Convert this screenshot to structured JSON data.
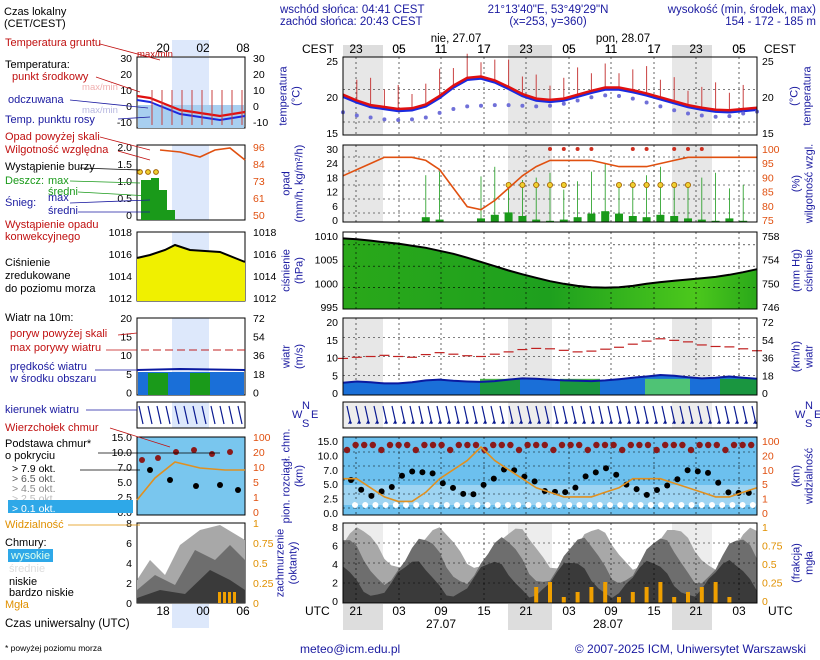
{
  "header": {
    "sunrise": "wschód słońca: 04:41 CEST",
    "sunset": "zachód słońca: 20:43 CEST",
    "coords": "21°13'40\"E, 53°49'29\"N",
    "grid": "(x=253, y=360)",
    "elev_title": "wysokość (min, środek, max)",
    "elev_values": "154 - 172 - 185 m"
  },
  "timeline": {
    "cest_label": "CEST",
    "utc_label": "UTC",
    "day1": "nie, 27.07",
    "day2": "pon, 28.07",
    "date1": "27.07",
    "date2": "28.07",
    "cest_hours": [
      "23",
      "05",
      "11",
      "17",
      "23",
      "05",
      "11",
      "17",
      "23",
      "05"
    ],
    "utc_hours": [
      "21",
      "03",
      "09",
      "15",
      "21",
      "03",
      "09",
      "15",
      "21",
      "03"
    ]
  },
  "legend": {
    "time_title": "Czas lokalny\n(CET/CEST)",
    "time_hours": [
      "20",
      "02",
      "08"
    ],
    "utc_hours": [
      "18",
      "00",
      "06"
    ],
    "utc_caption": "Czas uniwersalny (UTC)",
    "soil": "Temperatura gruntu",
    "soil_sub": "max/min",
    "temp_title": "Temperatura:",
    "temp_mid": "punkt środkowy",
    "temp_maxmin": "max/min",
    "temp_perceived": "odczuwana",
    "temp_perceived_sub": "max/min",
    "dewpoint": "Temp. punktu rosy",
    "precip_above": "Opad powyżej skali",
    "rh": "Wilgotność względna",
    "storm": "Wystąpienie burzy",
    "rain": "Deszcz:",
    "rain_max": "max",
    "rain_mid": "średni",
    "snow": "Śnieg:",
    "snow_max": "max",
    "snow_mid": "średni",
    "conv": "Wystąpienie opadu\nkonwekcyjnego",
    "pressure": "Ciśnienie\nzredukowane\ndo poziomu morza",
    "wind": "Wiatr na 10m:",
    "gust_above": "poryw powyżej skali",
    "gust_max": "max porywy wiatru",
    "wind_speed": "prędkość wiatru\nw środku obszaru",
    "wind_dir": "kierunek wiatru",
    "cloud_top": "Wierzchołek chmur",
    "cloud_base": "Podstawa chmur*\no pokryciu",
    "okt": [
      "> 7.9 okt.",
      "> 6.5 okt.",
      "> 4.5 okt.",
      "> 2.5 okt.",
      "> 0.1 okt."
    ],
    "visibility": "Widzialność",
    "clouds": "Chmury:",
    "clouds_high": "wysokie",
    "clouds_mid": "średnie",
    "clouds_low": "niskie",
    "clouds_vlow": "bardzo niskie",
    "fog": "Mgła",
    "footnote": "* powyżej poziomu morza"
  },
  "axes": {
    "temp": {
      "label": "temperatura\n(°C)",
      "ticks": [
        "25",
        "20",
        "15"
      ]
    },
    "precip": {
      "label": "opad\n(mm/h, kg/m²/h)",
      "ticks": [
        "30",
        "24",
        "18",
        "12",
        "6",
        "0"
      ]
    },
    "rh": {
      "label": "(%)\nwilgotność wzgl.",
      "ticks": [
        "100",
        "95",
        "90",
        "85",
        "80",
        "75"
      ]
    },
    "press": {
      "label": "ciśnienie\n(hPa)",
      "ticks": [
        "1010",
        "1005",
        "1000",
        "995"
      ]
    },
    "press_mm": {
      "label": "(mm Hg)\nciśnienie",
      "ticks": [
        "758",
        "754",
        "750",
        "746"
      ]
    },
    "wind": {
      "label": "wiatr\n(m/s)",
      "ticks": [
        "20",
        "15",
        "10",
        "5",
        "0"
      ]
    },
    "wind_kmh": {
      "label": "(km/h)\nwiatr",
      "ticks": [
        "72",
        "54",
        "36",
        "18",
        "0"
      ]
    },
    "cloudh": {
      "label": "pion. rozciągł. chm.\n(km)",
      "ticks": [
        "15.0",
        "10.0",
        "7.0",
        "5.0",
        "2.5",
        "0.0"
      ]
    },
    "vis": {
      "label": "(km)\nwidzialność",
      "ticks": [
        "100",
        "20",
        "10",
        "5",
        "1",
        "0"
      ]
    },
    "cover": {
      "label": "zachmurzenie\n(oktanty)",
      "ticks": [
        "8",
        "6",
        "4",
        "2",
        "0"
      ]
    },
    "fogfrac": {
      "label": "(frakcja)\nmgła",
      "ticks": [
        "1",
        "0.75",
        "0.5",
        "0.25",
        "0"
      ]
    }
  },
  "legend_ticks": {
    "temp_left": [
      "30",
      "20",
      "10",
      "0",
      "-10"
    ],
    "temp_right": [
      "30",
      "20",
      "10",
      "0",
      "-10"
    ],
    "precip_left": [
      "2.0",
      "1.5",
      "1.0",
      "0.5",
      "0"
    ],
    "rh_right": [
      "96",
      "84",
      "73",
      "61",
      "50"
    ],
    "press_left": [
      "1018",
      "1016",
      "1014",
      "1012"
    ],
    "press_right": [
      "1018",
      "1016",
      "1014",
      "1012"
    ],
    "wind_left": [
      "20",
      "15",
      "10",
      "5",
      "0"
    ],
    "wind_right": [
      "72",
      "54",
      "36",
      "18",
      "0"
    ],
    "cloud_left": [
      "15.0",
      "10.0",
      "7.0",
      "5.0",
      "2.5",
      "0.0"
    ],
    "cloud_right": [
      "100",
      "20",
      "10",
      "5",
      "1",
      "0"
    ],
    "cover_left": [
      "8",
      "6",
      "4",
      "2",
      "0"
    ],
    "cover_right": [
      "1",
      "0.75",
      "0.5",
      "0.25",
      "0"
    ]
  },
  "chart_data": {
    "type": "line",
    "x_hours_utc": [
      18,
      20,
      22,
      0,
      2,
      4,
      6,
      8,
      10,
      12,
      14,
      16,
      18,
      20,
      22,
      0,
      2,
      4,
      6,
      8,
      10,
      12,
      14,
      16,
      18,
      20,
      22,
      0,
      2,
      4,
      6
    ],
    "temperature": [
      19.2,
      18.3,
      17.6,
      17.3,
      17.0,
      17.1,
      17.7,
      19.0,
      20.6,
      21.8,
      22.0,
      21.4,
      20.4,
      19.3,
      18.6,
      18.4,
      18.6,
      19.2,
      19.8,
      20.3,
      20.3,
      19.9,
      19.4,
      18.8,
      18.2,
      17.6,
      17.2,
      16.9,
      16.8,
      17.0,
      17.2
    ],
    "dewpoint": [
      16.5,
      16.0,
      15.7,
      15.4,
      15.3,
      15.4,
      15.7,
      16.4,
      17.0,
      17.4,
      17.5,
      17.6,
      17.6,
      17.5,
      17.4,
      17.5,
      17.8,
      18.3,
      18.8,
      19.1,
      19.0,
      18.6,
      18.0,
      17.4,
      16.8,
      16.3,
      16.0,
      15.8,
      15.9,
      16.3,
      16.6
    ],
    "rh": [
      90,
      92,
      94,
      96,
      96,
      96,
      95,
      92,
      86,
      80,
      79,
      82,
      86,
      90,
      93,
      95,
      95,
      95,
      95,
      94,
      93,
      93,
      93,
      94,
      95,
      96,
      96,
      96,
      96,
      96,
      96
    ],
    "precip": [
      0,
      0,
      0,
      0,
      0,
      0,
      0.4,
      0.2,
      0,
      0,
      0.3,
      0.6,
      0.8,
      0.5,
      0.2,
      0.1,
      0.2,
      0.4,
      0.7,
      0.9,
      0.7,
      0.5,
      0.4,
      0.6,
      0.5,
      0.3,
      0.2,
      0.1,
      0.3,
      0.1,
      0
    ],
    "pressure": [
      1011.5,
      1011.3,
      1011.0,
      1010.6,
      1010.3,
      1009.8,
      1009.3,
      1008.6,
      1007.9,
      1007.0,
      1006.0,
      1005.0,
      1004.0,
      1003.1,
      1002.3,
      1001.5,
      1000.9,
      1000.4,
      1000.1,
      1000.0,
      1000.1,
      1000.4,
      1000.9,
      1001.3,
      1001.6,
      1001.9,
      1002.2,
      1002.5,
      1003.0,
      1003.6,
      1004.3
    ],
    "wind": [
      3.2,
      3.5,
      3.3,
      3.0,
      3.0,
      3.3,
      3.8,
      4.0,
      3.7,
      3.5,
      3.4,
      3.6,
      4.0,
      4.3,
      4.2,
      4.0,
      3.8,
      3.7,
      3.6,
      3.8,
      4.1,
      4.5,
      4.8,
      5.2,
      5.0,
      4.6,
      4.3,
      4.5,
      4.8,
      4.5,
      4.2
    ],
    "gust": [
      9.5,
      9.8,
      10.0,
      10.3,
      10.0,
      9.8,
      10.5,
      11.0,
      10.6,
      10.2,
      10.0,
      10.6,
      11.2,
      11.8,
      12.1,
      12.0,
      11.6,
      11.2,
      11.4,
      11.9,
      12.4,
      13.2,
      14.0,
      14.6,
      14.2,
      13.8,
      13.0,
      12.6,
      12.5,
      12.0,
      11.5
    ],
    "visibility_km": [
      8,
      8,
      6,
      4,
      3,
      3,
      5,
      8,
      10,
      12,
      15,
      12,
      10,
      8,
      6,
      5,
      4,
      4,
      4,
      5,
      6,
      8,
      8,
      8,
      7,
      6,
      5,
      4,
      4,
      5,
      6
    ],
    "pressure_ylim": [
      995,
      1013
    ],
    "temp_ylim": [
      13,
      25
    ],
    "wind_ylim": [
      0,
      20
    ]
  }
}
